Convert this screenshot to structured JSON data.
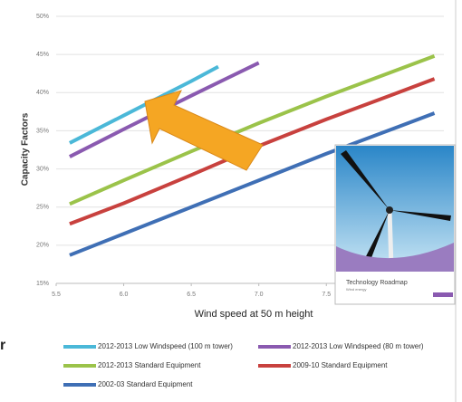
{
  "chart_data": {
    "type": "line",
    "y_label": "Capacity Factors",
    "x_label": "Wind speed at 50 m height",
    "xlim": [
      5.5,
      8.37
    ],
    "xticks": [
      {
        "value": 5.5,
        "label": "5.5"
      },
      {
        "value": 6,
        "label": "6.0"
      },
      {
        "value": 6.5,
        "label": "6.5"
      },
      {
        "value": 7,
        "label": "7.0"
      },
      {
        "value": 7.5,
        "label": "7.5"
      }
    ],
    "ylim": [
      15,
      50
    ],
    "yticks": [
      {
        "value": 15,
        "label": "15%"
      },
      {
        "value": 20,
        "label": "20%"
      },
      {
        "value": 25,
        "label": "25%"
      },
      {
        "value": 30,
        "label": "30%"
      },
      {
        "value": 35,
        "label": "35%"
      },
      {
        "value": 40,
        "label": "40%"
      },
      {
        "value": 45,
        "label": "45%"
      },
      {
        "value": 50,
        "label": "50%"
      }
    ],
    "grid": true,
    "series": [
      {
        "name": "2012-2013 Low Windspeed (100 m tower)",
        "color": "#4bb8d8",
        "x": [
          5.6,
          6.0,
          6.5,
          6.7
        ],
        "values": [
          33.4,
          37.0,
          41.5,
          43.4
        ]
      },
      {
        "name": "2012-2013 Low Windspeed (80 m tower)",
        "color": "#8a5ab0",
        "x": [
          5.6,
          6.0,
          6.5,
          7.0
        ],
        "values": [
          31.6,
          35.2,
          39.6,
          43.9
        ]
      },
      {
        "name": "2012-2013 Standard Equipment",
        "color": "#9bc34a",
        "x": [
          5.6,
          6.0,
          6.5,
          7.0,
          7.5,
          8.0,
          8.3
        ],
        "values": [
          25.4,
          28.5,
          32.3,
          36.0,
          39.5,
          42.8,
          44.8
        ]
      },
      {
        "name": "2009-10 Standard Equipment",
        "color": "#c8413e",
        "x": [
          5.6,
          6.0,
          6.5,
          7.0,
          7.5,
          8.0,
          8.3
        ],
        "values": [
          22.8,
          25.5,
          29.2,
          33.0,
          36.5,
          39.8,
          41.8
        ]
      },
      {
        "name": "2002-03 Standard Equipment",
        "color": "#3f6fb5",
        "x": [
          5.6,
          6.0,
          6.5,
          7.0,
          7.5,
          8.0,
          8.3
        ],
        "values": [
          18.7,
          21.5,
          25.0,
          28.5,
          32.0,
          35.3,
          37.3
        ]
      }
    ]
  },
  "inset": {
    "title": "Technology Roadmap",
    "subtitle": "Wind energy"
  },
  "side_text": "r"
}
